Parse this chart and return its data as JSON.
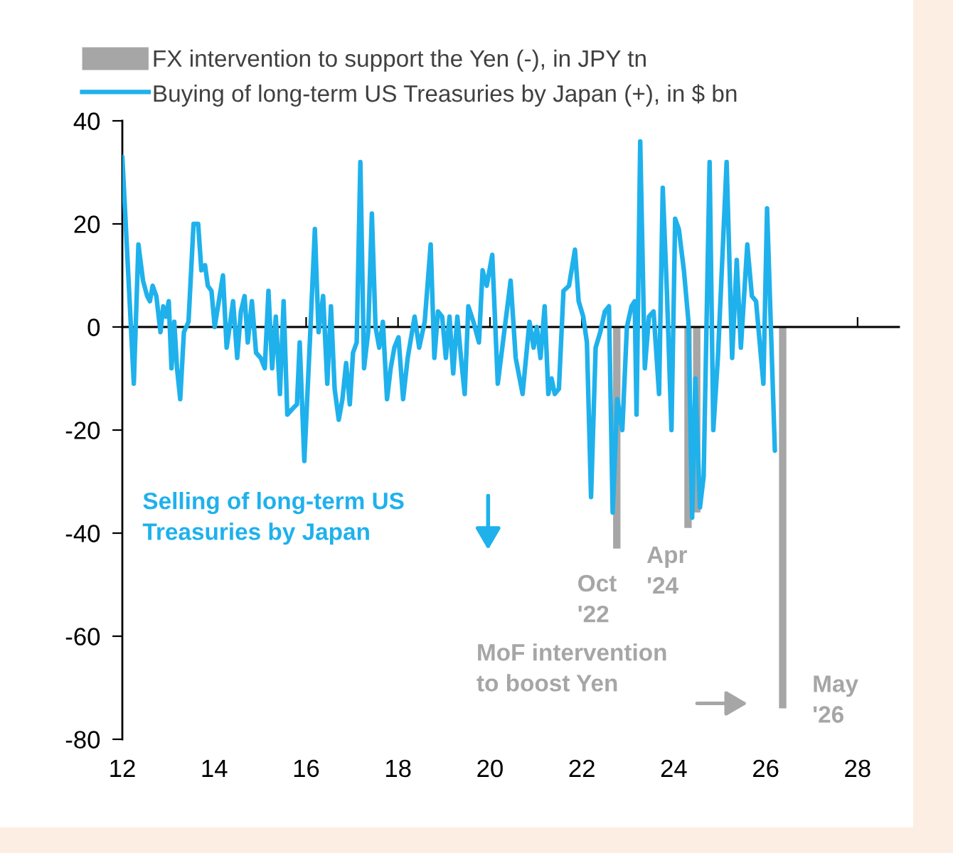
{
  "chart_data": {
    "type": "line",
    "legend": "top left",
    "xlim": [
      12,
      28.9
    ],
    "xticks": [
      12,
      14,
      16,
      18,
      20,
      22,
      24,
      26,
      28
    ],
    "ylim": [
      -80,
      40
    ],
    "yticks": [
      -80,
      -60,
      -40,
      -20,
      0,
      20,
      40
    ],
    "series": [
      {
        "type": "bar",
        "name": "FX intervention to support the Yen (-), in JPY tn",
        "color": "#a6a6a6",
        "x": [
          22.76,
          24.31,
          24.5,
          26.37
        ],
        "values": [
          -43,
          -39,
          -36,
          -74
        ]
      },
      {
        "name": "Buying of long-term US Treasuries by Japan (+), in $ bn",
        "color": "#1fb1ec",
        "x": [
          12.0,
          12.25,
          12.35,
          12.45,
          12.54,
          12.6,
          12.66,
          12.74,
          12.83,
          12.89,
          12.95,
          13.01,
          13.07,
          13.13,
          13.19,
          13.26,
          13.34,
          13.44,
          13.55,
          13.65,
          13.72,
          13.8,
          13.86,
          13.94,
          14.01,
          14.1,
          14.19,
          14.27,
          14.35,
          14.41,
          14.5,
          14.58,
          14.66,
          14.73,
          14.82,
          14.91,
          15.01,
          15.1,
          15.18,
          15.26,
          15.34,
          15.43,
          15.51,
          15.59,
          15.69,
          15.8,
          15.86,
          15.96,
          16.08,
          16.19,
          16.27,
          16.37,
          16.46,
          16.54,
          16.62,
          16.71,
          16.79,
          16.87,
          16.95,
          17.02,
          17.1,
          17.18,
          17.26,
          17.35,
          17.43,
          17.51,
          17.59,
          17.67,
          17.76,
          17.84,
          17.92,
          18.01,
          18.11,
          18.21,
          18.36,
          18.46,
          18.58,
          18.71,
          18.79,
          18.87,
          18.96,
          19.04,
          19.12,
          19.2,
          19.29,
          19.37,
          19.45,
          19.53,
          19.64,
          19.76,
          19.84,
          19.93,
          20.05,
          20.17,
          20.45,
          20.56,
          20.71,
          20.86,
          20.95,
          21.02,
          21.1,
          21.19,
          21.27,
          21.34,
          21.41,
          21.5,
          21.6,
          21.72,
          21.85,
          21.93,
          22.03,
          22.11,
          22.2,
          22.3,
          22.4,
          22.5,
          22.59,
          22.67,
          22.77,
          22.88,
          22.98,
          23.08,
          23.15,
          23.19,
          23.27,
          23.37,
          23.46,
          23.56,
          23.68,
          23.76,
          23.85,
          23.95,
          24.03,
          24.11,
          24.22,
          24.32,
          24.4,
          24.47,
          24.57,
          24.65,
          24.78,
          24.86,
          24.96,
          25.15,
          25.27,
          25.37,
          25.46,
          25.6,
          25.7,
          25.79,
          25.95,
          26.03,
          26.2
        ],
        "values": [
          33,
          -11,
          16,
          9,
          6,
          5,
          8,
          6,
          -1,
          4,
          2,
          5,
          -8,
          1,
          -8,
          -14,
          -1,
          1,
          20,
          20,
          11,
          12,
          8,
          7,
          0,
          5,
          10,
          -4,
          1,
          5,
          -6,
          3,
          6,
          -3,
          5,
          -5,
          -6,
          -8,
          7,
          -8,
          2,
          -13,
          5,
          -17,
          -16,
          -15,
          -3,
          -26,
          -3,
          19,
          -1,
          6,
          -11,
          4,
          -12,
          -18,
          -14,
          -7,
          -15,
          -5,
          -3,
          32,
          -8,
          -1,
          22,
          0,
          -4,
          1,
          -14,
          -8,
          -4,
          -2,
          -14,
          -6,
          2,
          -4,
          1,
          16,
          -6,
          3,
          2,
          -6,
          2,
          -9,
          2,
          -6,
          -13,
          4,
          1,
          -3,
          11,
          8,
          14,
          -11,
          9,
          -6,
          -13,
          1,
          -4,
          0,
          -6,
          4,
          -13,
          -10,
          -13,
          -12,
          7,
          8,
          15,
          5,
          2,
          -3,
          -33,
          -4,
          -1,
          3,
          4,
          -36,
          -14,
          -20,
          0,
          4,
          5,
          -17,
          36,
          -8,
          2,
          3,
          -13,
          27,
          7,
          -20,
          21,
          19,
          11,
          1,
          -37,
          -10,
          -35,
          -29,
          32,
          -20,
          -6,
          32,
          -6,
          13,
          -4,
          16,
          6,
          5,
          -11,
          23,
          -24
        ]
      }
    ],
    "annotations": [
      "Selling of long-term US\nTreasuries by Japan",
      {
        "text": "Oct\n'22",
        "x": 22.76,
        "y": -43
      },
      {
        "text": "Apr\n'24",
        "x": 24.31,
        "y": -39
      },
      "MoF intervention\nto boost Yen",
      {
        "text": "May\n'26",
        "x": 26.37,
        "y": -74
      }
    ]
  }
}
